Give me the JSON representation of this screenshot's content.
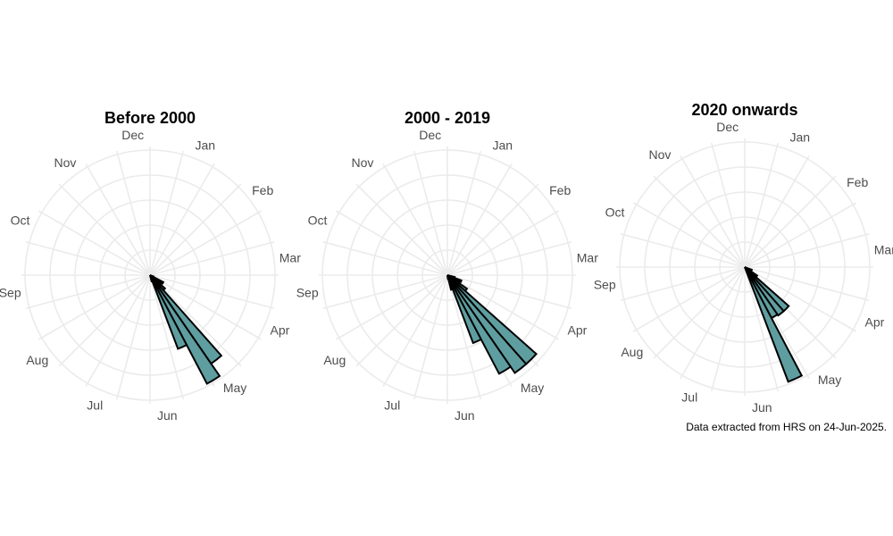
{
  "colors": {
    "bar_fill": "#5f9ea0",
    "bar_stroke": "#000000",
    "grid": "#ebebeb",
    "month_text": "#4d4d4d"
  },
  "caption": "Data extracted from HRS on 24-Jun-2025.",
  "chart_data": [
    {
      "type": "bar",
      "polar": true,
      "title": "Before 2000",
      "categories": [
        "Jan",
        "Feb",
        "Mar",
        "Apr",
        "May",
        "Jun",
        "Jul",
        "Aug",
        "Sep",
        "Oct",
        "Nov",
        "Dec"
      ],
      "week_values": [
        0,
        0,
        0,
        0,
        0,
        0,
        0,
        0,
        0,
        0,
        0,
        0,
        0,
        0,
        0,
        0,
        0.3,
        1.2,
        0.8,
        1.6,
        8.6,
        9.8,
        6.3,
        0.5,
        0,
        0,
        0,
        0,
        0,
        0,
        0,
        0,
        0,
        0,
        0,
        0,
        0,
        0,
        0,
        0,
        0,
        0,
        0,
        0,
        0,
        0,
        0,
        0,
        0,
        0,
        0,
        0
      ],
      "rmax": 10,
      "grid": true
    },
    {
      "type": "bar",
      "polar": true,
      "title": "2000 - 2019",
      "categories": [
        "Jan",
        "Feb",
        "Mar",
        "Apr",
        "May",
        "Jun",
        "Jul",
        "Aug",
        "Sep",
        "Oct",
        "Nov",
        "Dec"
      ],
      "week_values": [
        0,
        0,
        0,
        0,
        0,
        0,
        0,
        0,
        0,
        0,
        0,
        0,
        0,
        0,
        0,
        0.6,
        1.2,
        1.0,
        1.9,
        9.5,
        9.5,
        8.9,
        5.8,
        1.2,
        0.3,
        0,
        0,
        0,
        0,
        0,
        0,
        0,
        0,
        0,
        0,
        0,
        0,
        0,
        0,
        0,
        0,
        0,
        0,
        0,
        0,
        0,
        0,
        0,
        0,
        0,
        0,
        0
      ],
      "rmax": 10,
      "grid": true
    },
    {
      "type": "bar",
      "polar": true,
      "title": "2020 onwards",
      "categories": [
        "Jan",
        "Feb",
        "Mar",
        "Apr",
        "May",
        "Jun",
        "Jul",
        "Aug",
        "Sep",
        "Oct",
        "Nov",
        "Dec"
      ],
      "week_values": [
        0,
        0,
        0,
        0,
        0,
        0,
        0,
        0,
        0,
        0,
        0,
        0,
        0,
        0,
        0,
        0,
        0.6,
        0.6,
        1.2,
        4.7,
        4.7,
        4.6,
        9.8,
        0,
        0,
        0,
        0,
        0,
        0,
        0,
        0,
        0,
        0,
        0,
        0,
        0,
        0,
        0,
        0,
        0,
        0,
        0,
        0,
        0,
        0,
        0,
        0,
        0,
        0,
        0,
        0,
        0
      ],
      "rmax": 10,
      "grid": true
    }
  ]
}
